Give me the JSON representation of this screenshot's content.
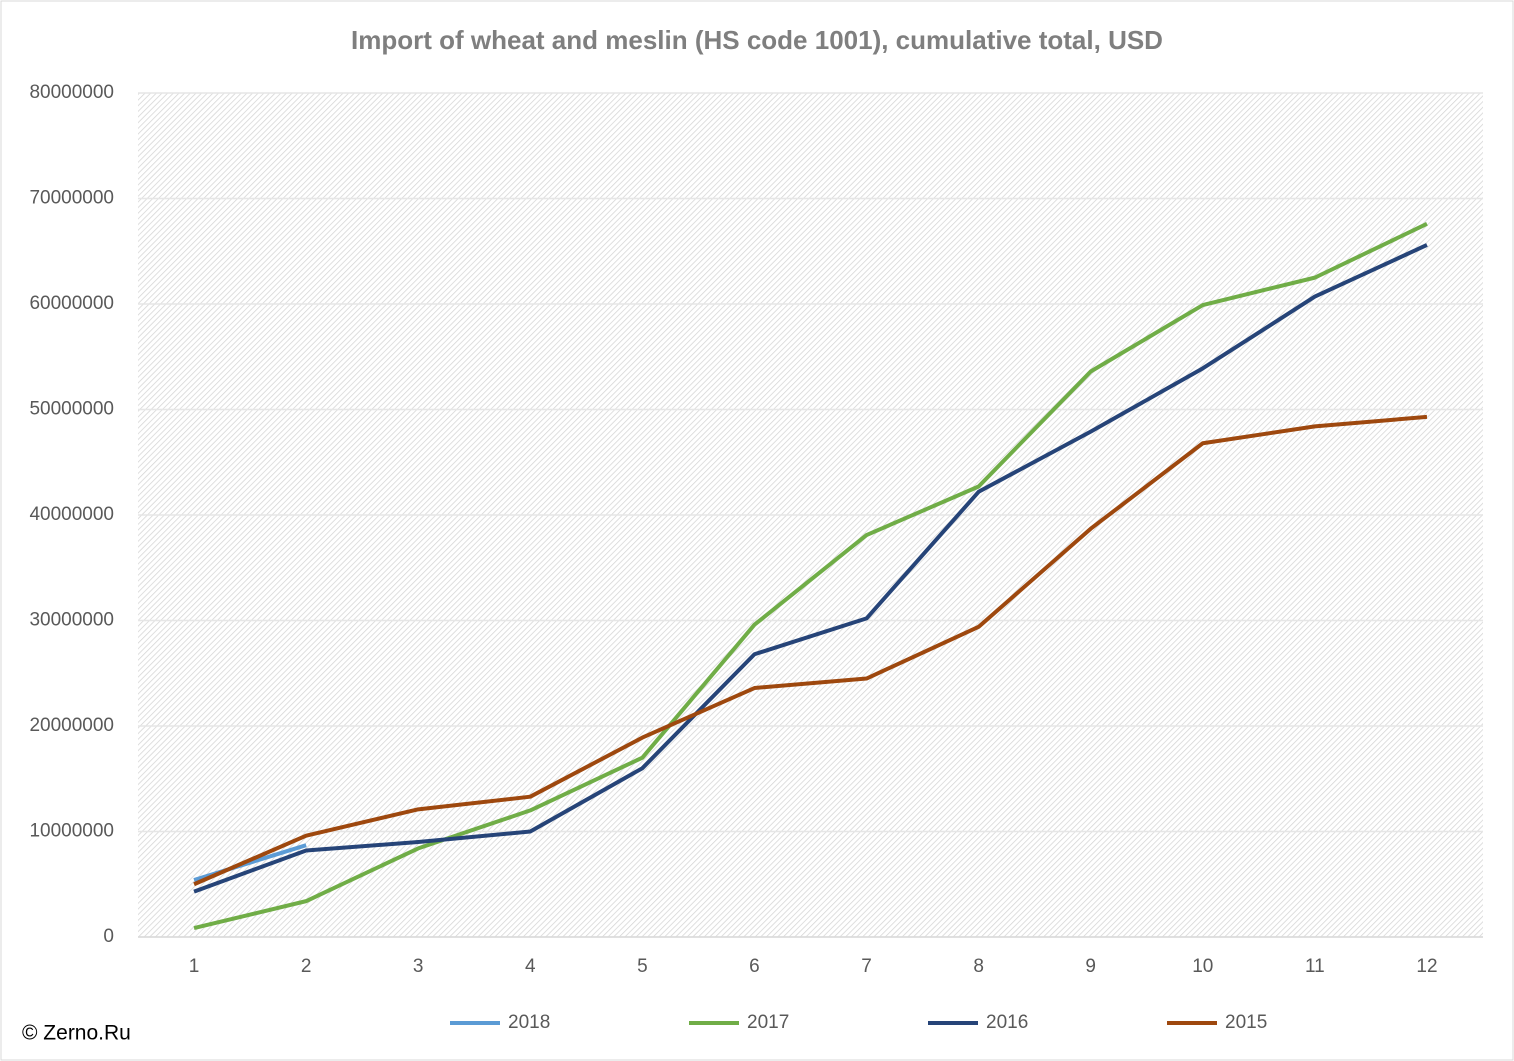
{
  "chart_data": {
    "type": "line",
    "title": "Import of wheat and meslin (HS code 1001), cumulative total, USD",
    "source": "© Zerno.Ru",
    "categories": [
      1,
      2,
      3,
      4,
      5,
      6,
      7,
      8,
      9,
      10,
      11,
      12
    ],
    "series": [
      {
        "name": "2018",
        "color": "#5b9bd5",
        "values": [
          5400000,
          8700000,
          null,
          null,
          null,
          null,
          null,
          null,
          null,
          null,
          null,
          null
        ]
      },
      {
        "name": "2017",
        "color": "#70ad47",
        "values": [
          850000,
          3400000,
          8400000,
          12000000,
          17000000,
          29600000,
          38100000,
          42700000,
          53600000,
          59900000,
          62500000,
          67600000
        ]
      },
      {
        "name": "2016",
        "color": "#264478",
        "values": [
          4300000,
          8200000,
          9000000,
          10000000,
          16000000,
          26800000,
          30200000,
          42200000,
          47900000,
          53900000,
          60700000,
          65600000
        ]
      },
      {
        "name": "2015",
        "color": "#9e480e",
        "values": [
          5000000,
          9600000,
          12100000,
          13300000,
          18900000,
          23600000,
          24500000,
          29400000,
          38700000,
          46800000,
          48400000,
          49300000
        ]
      }
    ],
    "ylim": [
      0,
      80000000
    ],
    "yticks": [
      0,
      10000000,
      20000000,
      30000000,
      40000000,
      50000000,
      60000000,
      70000000,
      80000000
    ],
    "grid": true,
    "legend": "bottom"
  }
}
